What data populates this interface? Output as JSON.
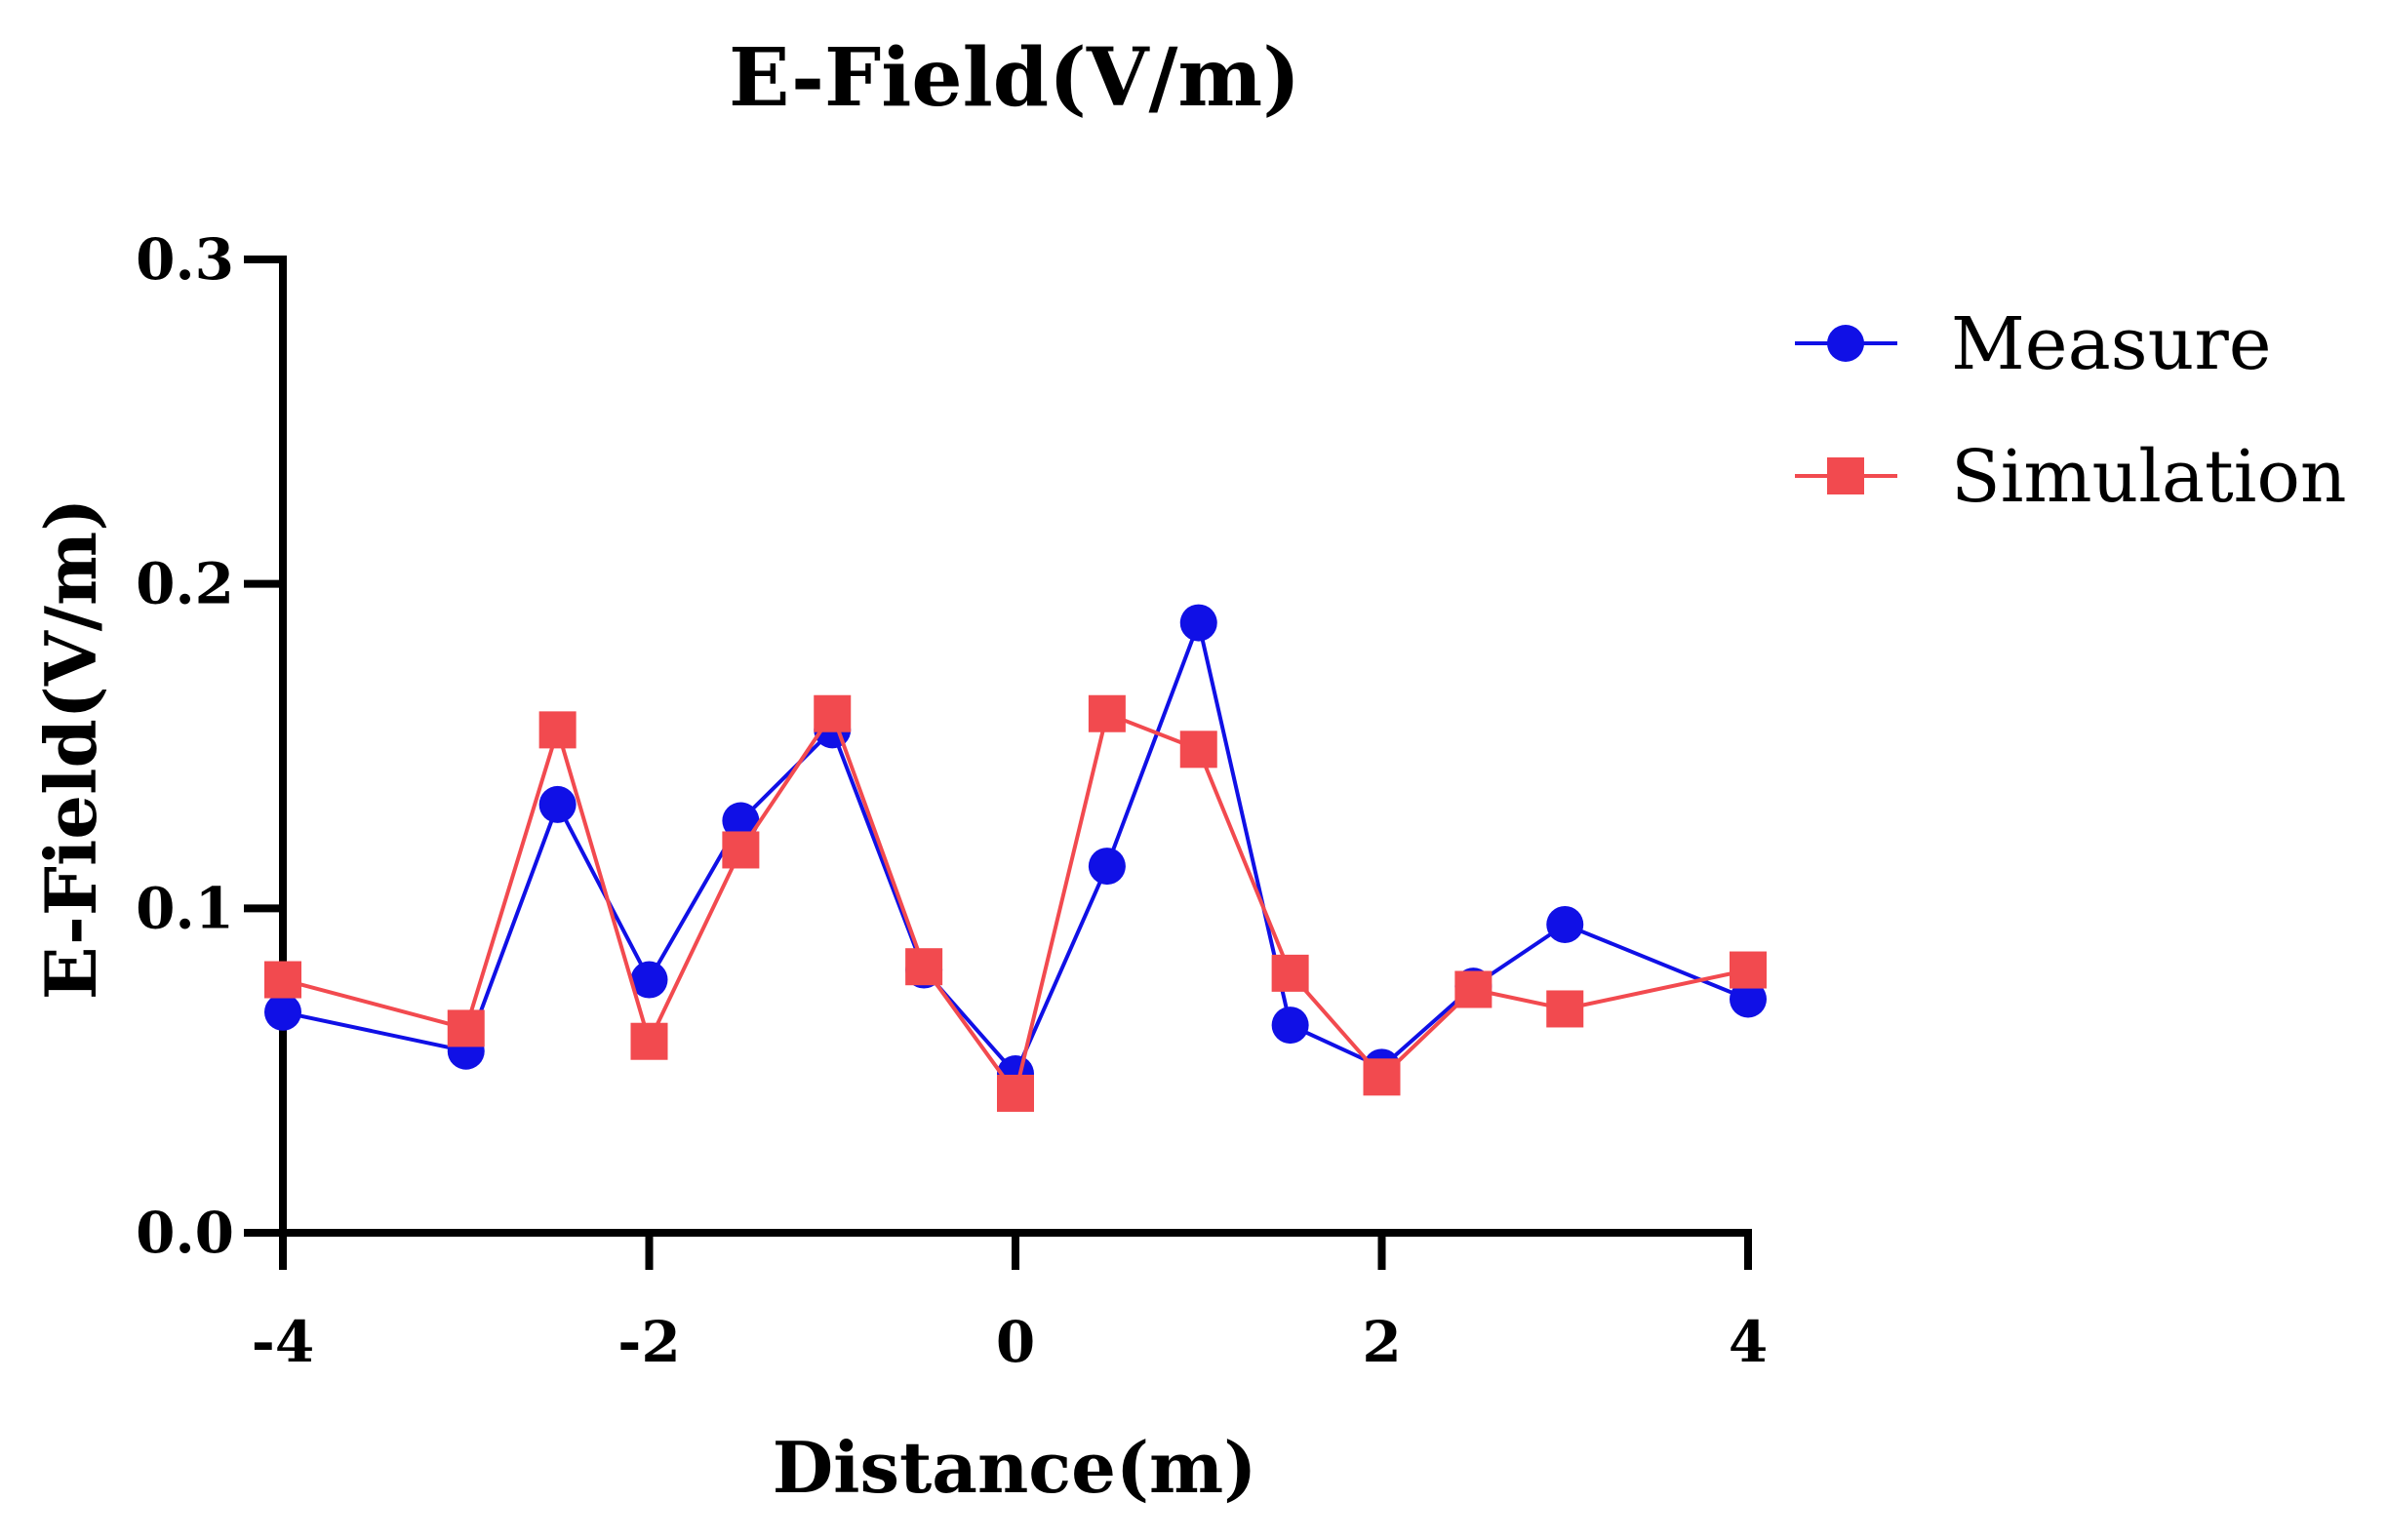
{
  "chart_data": {
    "type": "line",
    "title": "E-Field(V/m)",
    "xlabel": "Distance(m)",
    "ylabel": "E-Field(V/m)",
    "xlim": [
      -4,
      4
    ],
    "ylim": [
      0,
      0.3
    ],
    "xticks": [
      -4,
      -2,
      0,
      2,
      4
    ],
    "xtick_labels": [
      "-4",
      "-2",
      "0",
      "2",
      "4"
    ],
    "yticks": [
      0,
      0.1,
      0.2,
      0.3
    ],
    "ytick_labels": [
      "0.0",
      "0.1",
      "0.2",
      "0.3"
    ],
    "grid": false,
    "legend_position": "top-right",
    "series": [
      {
        "name": "Measure",
        "color": "#1010e6",
        "marker": "circle",
        "x": [
          -4,
          -3,
          -2.5,
          -2,
          -1.5,
          -1,
          -0.5,
          0,
          0.5,
          1,
          1.5,
          2,
          2.5,
          3,
          4
        ],
        "y": [
          0.068,
          0.056,
          0.132,
          0.078,
          0.127,
          0.155,
          0.081,
          0.049,
          0.113,
          0.188,
          0.064,
          0.051,
          0.076,
          0.095,
          0.072
        ]
      },
      {
        "name": "Simulation",
        "color": "#f24a4f",
        "marker": "square",
        "x": [
          -4,
          -3,
          -2.5,
          -2,
          -1.5,
          -1,
          -0.5,
          0,
          0.5,
          1,
          1.5,
          2,
          2.5,
          3,
          4
        ],
        "y": [
          0.078,
          0.063,
          0.155,
          0.059,
          0.118,
          0.16,
          0.082,
          0.043,
          0.16,
          0.149,
          0.08,
          0.048,
          0.075,
          0.069,
          0.081
        ]
      }
    ]
  }
}
